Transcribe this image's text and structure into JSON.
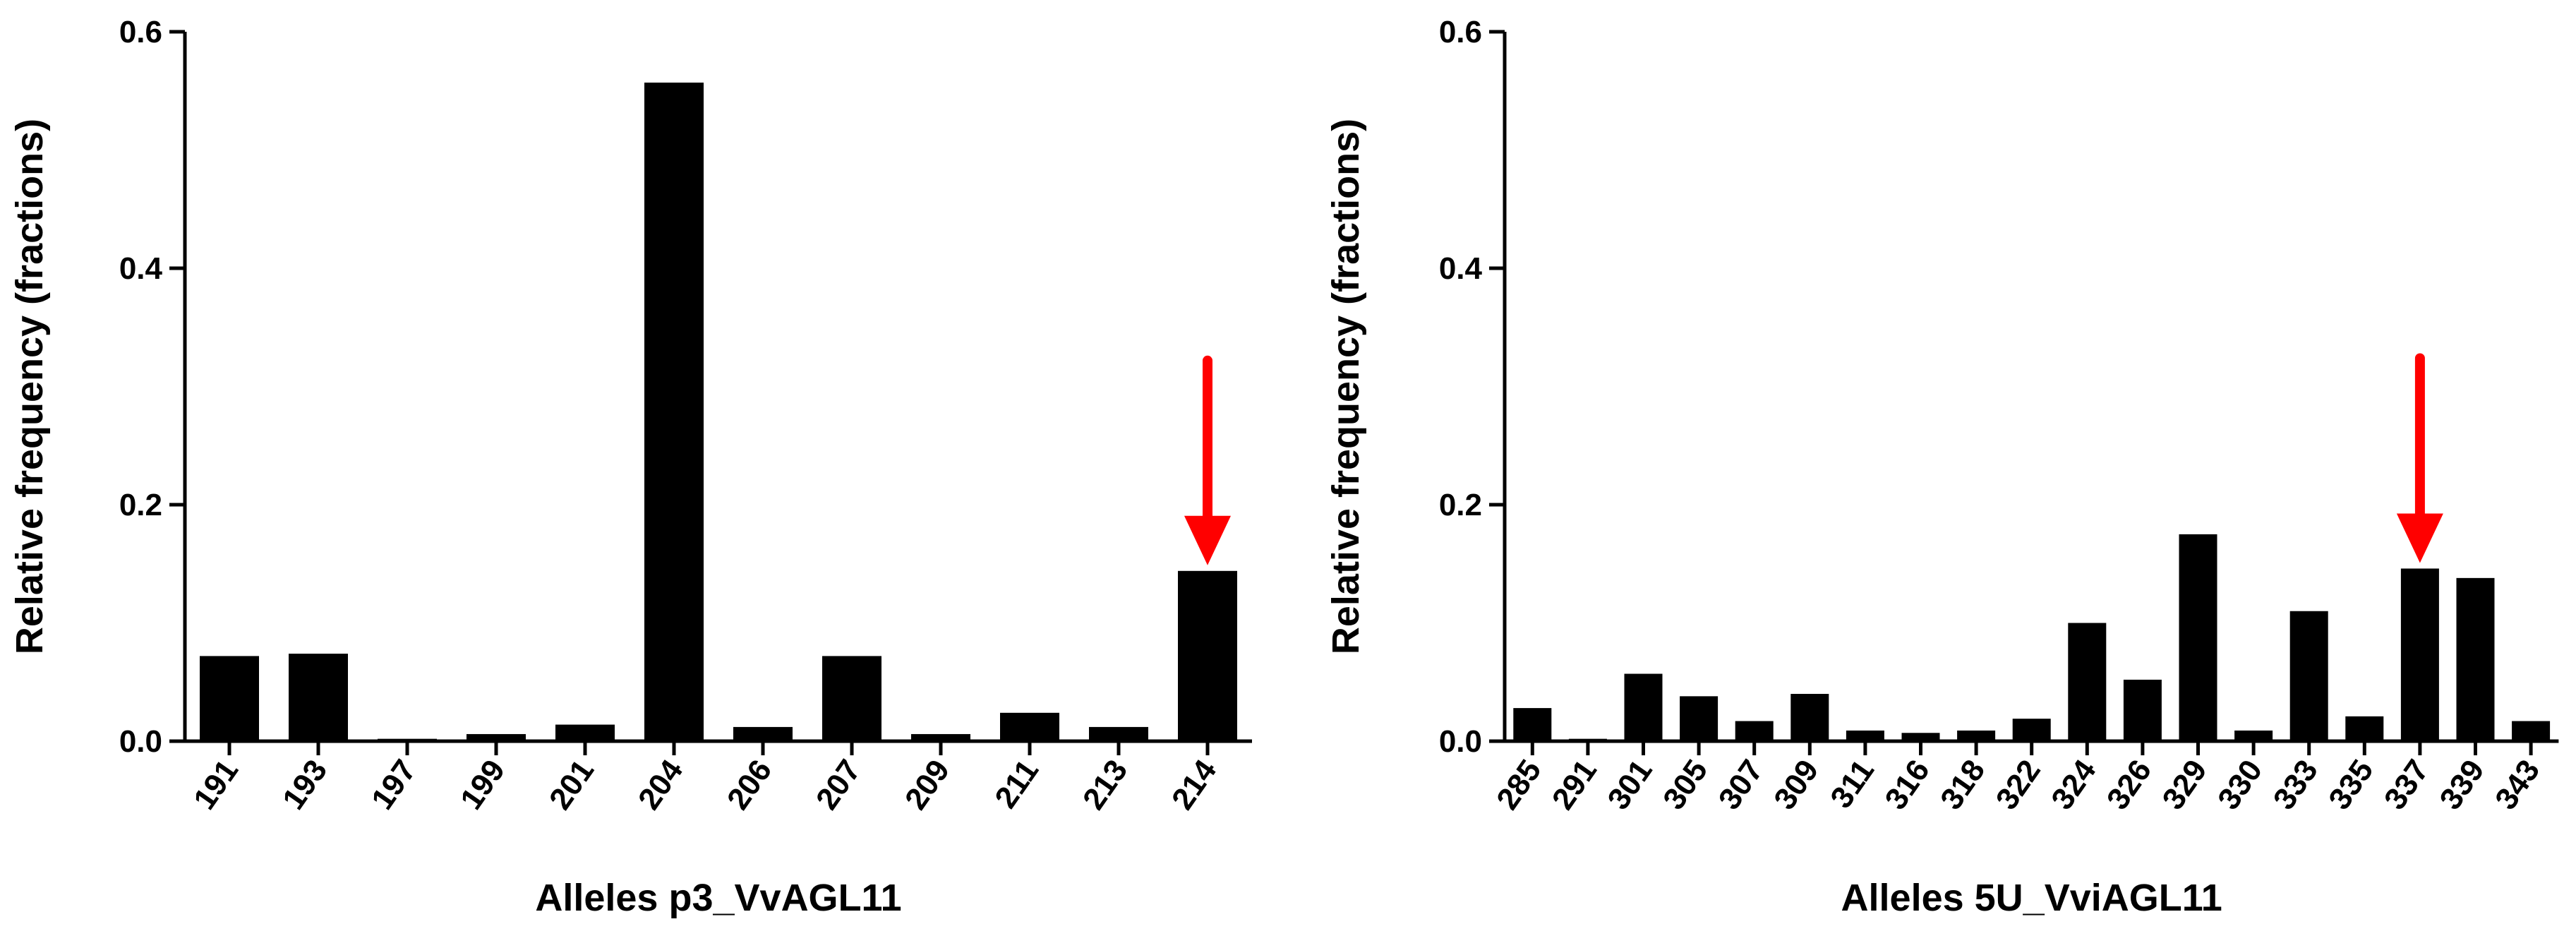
{
  "chart_data": [
    {
      "type": "bar",
      "xlabel": "Alleles p3_VvAGL11",
      "ylabel": "Relative frequency (fractions)",
      "ylim": [
        0,
        0.6
      ],
      "yticks": [
        "0.0",
        "0.2",
        "0.4",
        "0.6"
      ],
      "categories": [
        "191",
        "193",
        "197",
        "199",
        "201",
        "204",
        "206",
        "207",
        "209",
        "211",
        "213",
        "214"
      ],
      "values": [
        0.072,
        0.074,
        0.002,
        0.006,
        0.014,
        0.557,
        0.012,
        0.072,
        0.006,
        0.024,
        0.012,
        0.144
      ],
      "highlight_category": "214",
      "highlight_color": "#ff0000",
      "bar_color": "#000000"
    },
    {
      "type": "bar",
      "xlabel": "Alleles 5U_VviAGL11",
      "ylabel": "Relative frequency (fractions)",
      "ylim": [
        0,
        0.6
      ],
      "yticks": [
        "0.0",
        "0.2",
        "0.4",
        "0.6"
      ],
      "categories": [
        "285",
        "291",
        "301",
        "305",
        "307",
        "309",
        "311",
        "316",
        "318",
        "322",
        "324",
        "326",
        "329",
        "330",
        "333",
        "335",
        "337",
        "339",
        "343"
      ],
      "values": [
        0.028,
        0.002,
        0.057,
        0.038,
        0.017,
        0.04,
        0.009,
        0.007,
        0.009,
        0.019,
        0.1,
        0.052,
        0.175,
        0.009,
        0.11,
        0.021,
        0.146,
        0.138,
        0.017
      ],
      "highlight_category": "337",
      "highlight_color": "#ff0000",
      "bar_color": "#000000"
    }
  ]
}
